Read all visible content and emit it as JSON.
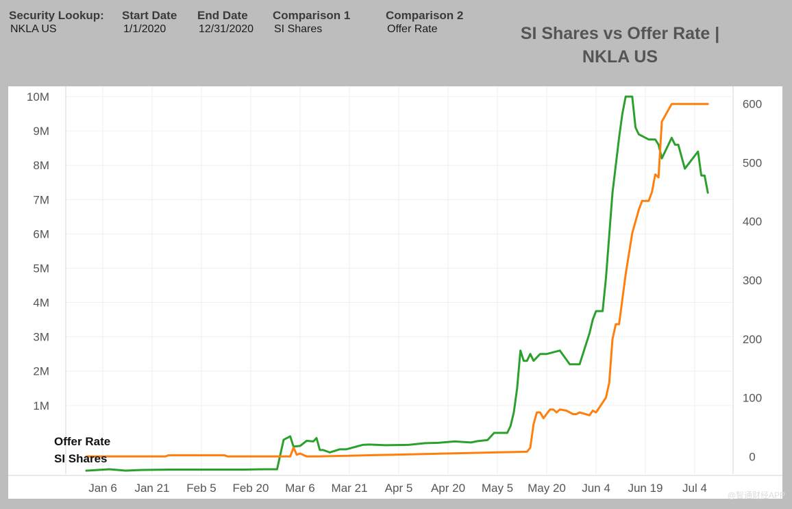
{
  "header": {
    "security_label": "Security Lookup:",
    "security_value": "NKLA US",
    "start_label": "Start Date",
    "start_value": "1/1/2020",
    "end_label": "End Date",
    "end_value": "12/31/2020",
    "comp1_label": "Comparison 1",
    "comp1_value": "SI Shares",
    "comp2_label": "Comparison 2",
    "comp2_value": "Offer Rate"
  },
  "watermark": "@智通财经APP",
  "colors": {
    "si_shares": "#2ca02c",
    "offer_rate": "#ff7f0e"
  },
  "chart_data": {
    "type": "line",
    "title": "SI Shares vs Offer Rate | NKLA US",
    "xlabel": "",
    "ylabel": "",
    "x_ticks": [
      "Jan 6",
      "Jan 21",
      "Feb 5",
      "Feb 20",
      "Mar 6",
      "Mar 21",
      "Apr 5",
      "Apr 20",
      "May 5",
      "May 20",
      "Jun 4",
      "Jun 19",
      "Jul 4"
    ],
    "y_left_ticks": [
      "1M",
      "2M",
      "3M",
      "4M",
      "5M",
      "6M",
      "7M",
      "8M",
      "9M",
      "10M"
    ],
    "y_left_range": [
      -1000000,
      10300000
    ],
    "y_right_ticks": [
      "0",
      "100",
      "200",
      "300",
      "400",
      "500",
      "600"
    ],
    "y_right_range": [
      -30,
      630
    ],
    "grid": true,
    "series": [
      {
        "name": "SI Shares",
        "axis": "left",
        "x": [
          "2020-01-01",
          "2020-01-08",
          "2020-01-13",
          "2020-01-18",
          "2020-01-26",
          "2020-02-05",
          "2020-02-10",
          "2020-02-18",
          "2020-02-24",
          "2020-02-28",
          "2020-03-01",
          "2020-03-03",
          "2020-03-04",
          "2020-03-06",
          "2020-03-08",
          "2020-03-10",
          "2020-03-11",
          "2020-03-12",
          "2020-03-13",
          "2020-03-15",
          "2020-03-18",
          "2020-03-20",
          "2020-03-25",
          "2020-03-27",
          "2020-04-01",
          "2020-04-08",
          "2020-04-13",
          "2020-04-17",
          "2020-04-22",
          "2020-04-27",
          "2020-04-29",
          "2020-05-02",
          "2020-05-04",
          "2020-05-08",
          "2020-05-09",
          "2020-05-10",
          "2020-05-11",
          "2020-05-12",
          "2020-05-13",
          "2020-05-14",
          "2020-05-15",
          "2020-05-16",
          "2020-05-18",
          "2020-05-20",
          "2020-05-22",
          "2020-05-24",
          "2020-05-27",
          "2020-05-30",
          "2020-05-31",
          "2020-06-02",
          "2020-06-03",
          "2020-06-04",
          "2020-06-06",
          "2020-06-07",
          "2020-06-09",
          "2020-06-11",
          "2020-06-12",
          "2020-06-13",
          "2020-06-15",
          "2020-06-16",
          "2020-06-17",
          "2020-06-20",
          "2020-06-22",
          "2020-06-23",
          "2020-06-24",
          "2020-06-27",
          "2020-06-28",
          "2020-06-29",
          "2020-07-01",
          "2020-07-05",
          "2020-07-06",
          "2020-07-07",
          "2020-07-08"
        ],
        "y": [
          -900000,
          -860000,
          -900000,
          -880000,
          -870000,
          -870000,
          -870000,
          -870000,
          -860000,
          -860000,
          0,
          100000,
          -200000,
          -180000,
          -30000,
          -50000,
          50000,
          -300000,
          -300000,
          -370000,
          -280000,
          -280000,
          -150000,
          -140000,
          -160000,
          -150000,
          -100000,
          -90000,
          -50000,
          -80000,
          -40000,
          -10000,
          200000,
          200000,
          400000,
          800000,
          1500000,
          2600000,
          2300000,
          2300000,
          2500000,
          2300000,
          2500000,
          2500000,
          2550000,
          2600000,
          2200000,
          2200000,
          2500000,
          3100000,
          3500000,
          3750000,
          3750000,
          4700000,
          7200000,
          8800000,
          9500000,
          10000000,
          10000000,
          9100000,
          8900000,
          8750000,
          8750000,
          8600000,
          8200000,
          8800000,
          8600000,
          8600000,
          7900000,
          8400000,
          7700000,
          7700000,
          7200000
        ]
      },
      {
        "name": "Offer Rate",
        "axis": "right",
        "x": [
          "2020-01-01",
          "2020-01-25",
          "2020-01-26",
          "2020-02-12",
          "2020-02-13",
          "2020-03-03",
          "2020-03-04",
          "2020-03-05",
          "2020-03-06",
          "2020-03-08",
          "2020-03-09",
          "2020-03-11",
          "2020-05-14",
          "2020-05-15",
          "2020-05-16",
          "2020-05-17",
          "2020-05-18",
          "2020-05-19",
          "2020-05-21",
          "2020-05-22",
          "2020-05-23",
          "2020-05-24",
          "2020-05-26",
          "2020-05-28",
          "2020-05-29",
          "2020-05-30",
          "2020-06-02",
          "2020-06-03",
          "2020-06-04",
          "2020-06-07",
          "2020-06-08",
          "2020-06-09",
          "2020-06-10",
          "2020-06-11",
          "2020-06-13",
          "2020-06-14",
          "2020-06-15",
          "2020-06-17",
          "2020-06-18",
          "2020-06-20",
          "2020-06-21",
          "2020-06-22",
          "2020-06-23",
          "2020-06-24",
          "2020-06-27",
          "2020-07-08"
        ],
        "y": [
          0,
          0,
          2,
          2,
          0,
          0,
          15,
          3,
          5,
          0,
          0,
          0,
          8,
          15,
          55,
          75,
          75,
          65,
          80,
          80,
          75,
          80,
          78,
          72,
          72,
          75,
          70,
          78,
          75,
          100,
          125,
          200,
          225,
          225,
          310,
          345,
          380,
          420,
          435,
          435,
          450,
          480,
          475,
          570,
          600,
          600
        ]
      }
    ],
    "legend_placement": "bottom-left",
    "legend_labels": [
      "Offer Rate",
      "SI Shares"
    ]
  }
}
